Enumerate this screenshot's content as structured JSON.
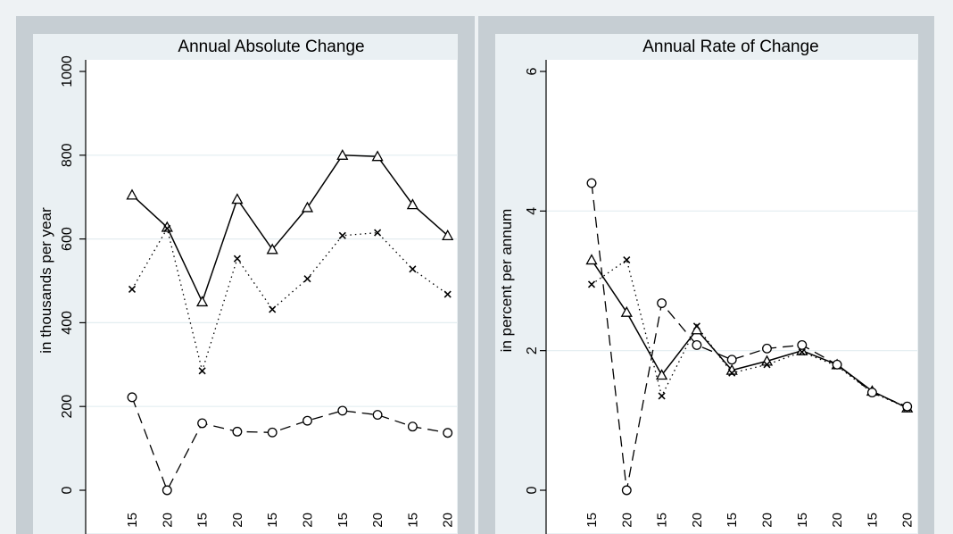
{
  "chart_data": [
    {
      "type": "line",
      "title": "Annual Absolute Change",
      "xlabel": "",
      "ylabel": "in thousands per year",
      "ylim": [
        0,
        1000
      ],
      "yticks": [
        "0",
        "200",
        "400",
        "600",
        "800",
        "1000"
      ],
      "xticks": [
        "15",
        "20",
        "15",
        "20",
        "15",
        "20",
        "15",
        "20",
        "15",
        "20"
      ],
      "grid": true,
      "series": [
        {
          "marker": "triangle",
          "line": "solid",
          "values": [
            705,
            628,
            450,
            695,
            575,
            675,
            800,
            797,
            682,
            608
          ]
        },
        {
          "marker": "x",
          "line": "dotted",
          "values": [
            480,
            625,
            285,
            553,
            432,
            505,
            608,
            615,
            528,
            468
          ]
        },
        {
          "marker": "circle",
          "line": "dashed",
          "values": [
            222,
            0,
            160,
            140,
            138,
            166,
            190,
            180,
            152,
            137
          ]
        }
      ]
    },
    {
      "type": "line",
      "title": "Annual Rate of Change",
      "xlabel": "",
      "ylabel": "in percent per annum",
      "ylim": [
        0,
        6
      ],
      "yticks": [
        "0",
        "2",
        "4",
        "6"
      ],
      "xticks": [
        "15",
        "20",
        "15",
        "20",
        "15",
        "20",
        "15",
        "20",
        "15",
        "20"
      ],
      "grid": true,
      "series": [
        {
          "marker": "triangle",
          "line": "solid",
          "values": [
            3.3,
            2.55,
            1.65,
            2.3,
            1.72,
            1.85,
            2.0,
            1.8,
            1.42,
            1.18
          ]
        },
        {
          "marker": "x",
          "line": "dotted",
          "values": [
            2.95,
            3.3,
            1.35,
            2.35,
            1.68,
            1.8,
            1.98,
            1.78,
            1.4,
            1.18
          ]
        },
        {
          "marker": "circle",
          "line": "dashed",
          "values": [
            4.4,
            0.0,
            2.68,
            2.08,
            1.87,
            2.03,
            2.08,
            1.8,
            1.4,
            1.2
          ]
        }
      ]
    }
  ]
}
